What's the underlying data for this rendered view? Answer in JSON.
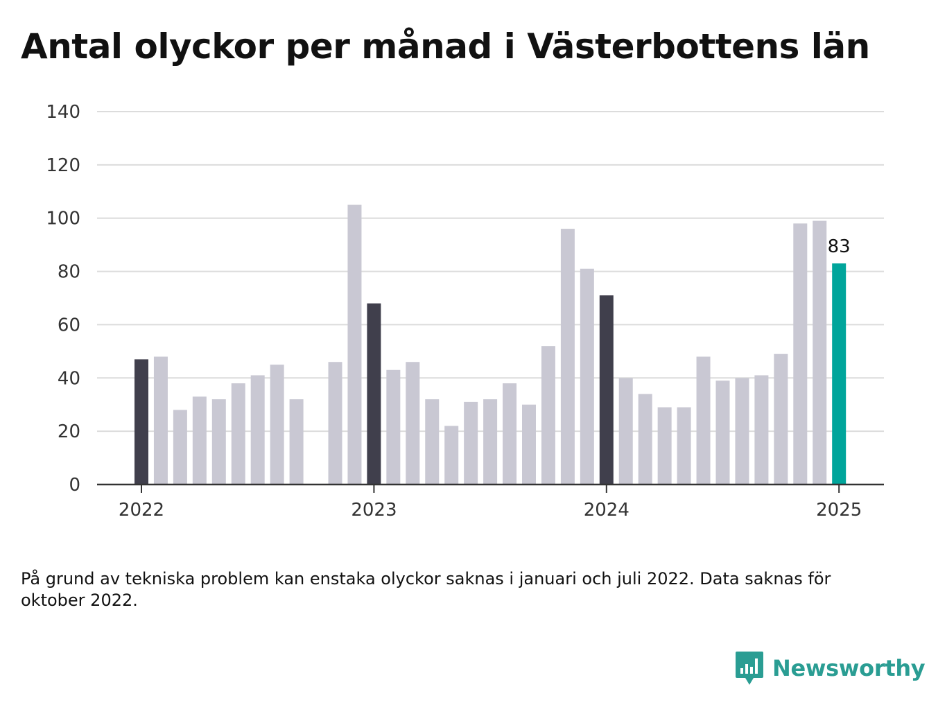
{
  "title": "Antal olyckor per månad i Västerbottens län",
  "note": "På grund av tekniska problem kan enstaka olyckor saknas i januari och juli 2022. Data saknas för oktober 2022.",
  "brand": {
    "name": "Newsworthy",
    "icon": "newsworthy-bar-chart-icon",
    "color": "#2a9d93"
  },
  "colors": {
    "january": "#403f4c",
    "other": "#c9c8d3",
    "latest": "#00a59b",
    "grid": "#dcdcdc",
    "axis": "#333333"
  },
  "chart_data": {
    "type": "bar",
    "title": "Antal olyckor per månad i Västerbottens län",
    "xlabel": "",
    "ylabel": "",
    "ylim": [
      0,
      140
    ],
    "yticks": [
      0,
      20,
      40,
      60,
      80,
      100,
      120,
      140
    ],
    "xticks": [
      "2022",
      "2023",
      "2024",
      "2025"
    ],
    "grid": true,
    "legend": "none",
    "categories": [
      "2022-01",
      "2022-02",
      "2022-03",
      "2022-04",
      "2022-05",
      "2022-06",
      "2022-07",
      "2022-08",
      "2022-09",
      "2022-10",
      "2022-11",
      "2022-12",
      "2023-01",
      "2023-02",
      "2023-03",
      "2023-04",
      "2023-05",
      "2023-06",
      "2023-07",
      "2023-08",
      "2023-09",
      "2023-10",
      "2023-11",
      "2023-12",
      "2024-01",
      "2024-02",
      "2024-03",
      "2024-04",
      "2024-05",
      "2024-06",
      "2024-07",
      "2024-08",
      "2024-09",
      "2024-10",
      "2024-11",
      "2024-12",
      "2025-01"
    ],
    "values": [
      47,
      48,
      28,
      33,
      32,
      38,
      41,
      45,
      32,
      null,
      46,
      105,
      68,
      43,
      46,
      32,
      22,
      31,
      32,
      38,
      30,
      52,
      96,
      81,
      71,
      40,
      34,
      29,
      29,
      48,
      39,
      40,
      41,
      49,
      98,
      99,
      83
    ],
    "highlight": {
      "category": "2025-01",
      "label": "83"
    }
  }
}
